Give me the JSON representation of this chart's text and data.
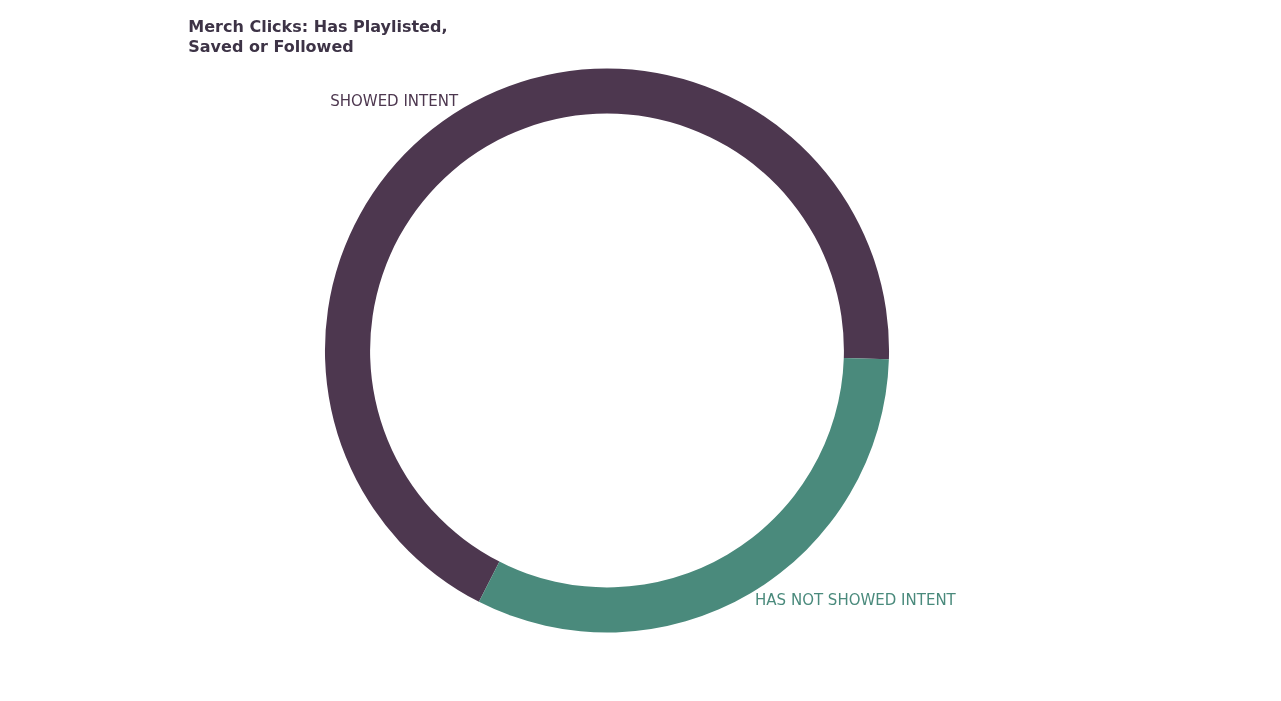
{
  "chart_data": {
    "type": "donut",
    "title": "Merch Clicks: Has Playlisted,\nSaved or Followed",
    "categories": [
      "SHOWED INTENT",
      "HAS NOT SHOWED INTENT"
    ],
    "values": [
      68,
      32
    ],
    "colors": [
      "#4d374f",
      "#4a8a7c"
    ],
    "legend": false
  }
}
